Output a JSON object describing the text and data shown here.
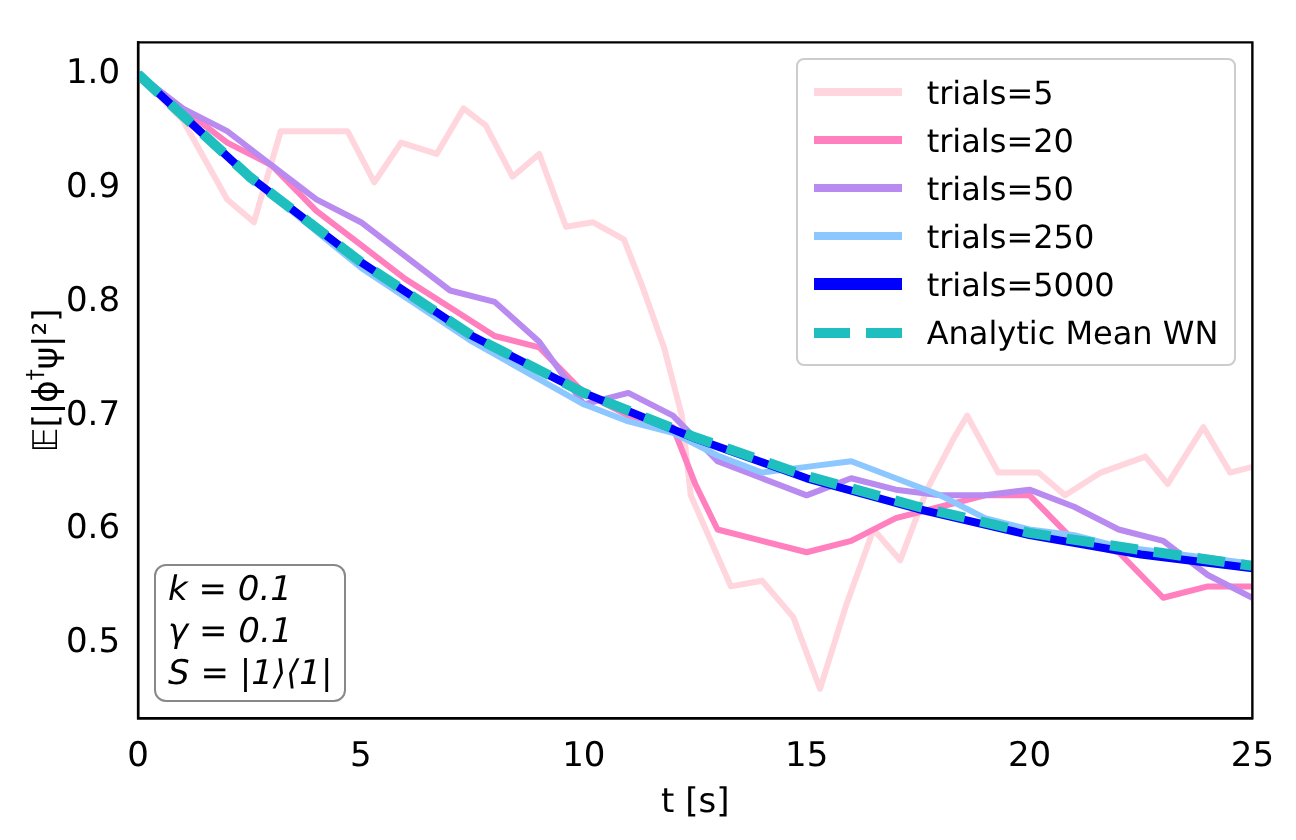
{
  "chart_data": {
    "type": "line",
    "ylabel": "𝔼[|ϕ$^{†}$ψ|²]",
    "xlabel": "t [s]",
    "xlim": [
      0,
      25
    ],
    "ylim": [
      0.434,
      1.028
    ],
    "xticks": [
      0,
      5,
      10,
      15,
      20,
      25
    ],
    "yticks": [
      0.5,
      0.6,
      0.7,
      0.8,
      0.9,
      {
        "value": 1,
        "label": "1.0"
      }
    ],
    "grid": false,
    "legend": "top right",
    "marker": "none",
    "annotations": [
      "k = 0.1",
      "γ = 0.1",
      "S = |1⟩⟨1|"
    ],
    "series": [
      {
        "name": "trials=5",
        "color": "#ffd6de",
        "line_style": "solid",
        "x": [
          0,
          1,
          2,
          2.6,
          3.2,
          3.8,
          4.7,
          5.3,
          5.9,
          6.7,
          7.3,
          7.8,
          8.4,
          9,
          9.6,
          10.2,
          10.9,
          11.3,
          11.8,
          12.2,
          12.4,
          13.3,
          14,
          14.7,
          15.3,
          15.9,
          16.5,
          17.1,
          17.7,
          18.3,
          18.6,
          19.3,
          20.2,
          20.8,
          21.6,
          22.6,
          23.1,
          23.9,
          24.5,
          25
        ],
        "values": [
          1,
          0.96,
          0.89,
          0.87,
          0.95,
          0.95,
          0.95,
          0.905,
          0.94,
          0.93,
          0.97,
          0.955,
          0.91,
          0.93,
          0.866,
          0.87,
          0.855,
          0.815,
          0.76,
          0.7,
          0.63,
          0.55,
          0.555,
          0.523,
          0.46,
          0.535,
          0.6,
          0.573,
          0.635,
          0.68,
          0.7,
          0.65,
          0.65,
          0.63,
          0.65,
          0.664,
          0.64,
          0.69,
          0.65,
          0.655
        ]
      },
      {
        "name": "trials=20",
        "color": "#ff7fbf",
        "line_style": "solid",
        "x": [
          0,
          1,
          2,
          3,
          4,
          5,
          6,
          7,
          8,
          9,
          10,
          11,
          12,
          12.5,
          13,
          14,
          15,
          16,
          17,
          18,
          19,
          20,
          21,
          22,
          23,
          24,
          25
        ],
        "values": [
          1,
          0.97,
          0.94,
          0.92,
          0.88,
          0.85,
          0.82,
          0.795,
          0.77,
          0.76,
          0.72,
          0.7,
          0.69,
          0.64,
          0.6,
          0.59,
          0.58,
          0.59,
          0.61,
          0.62,
          0.63,
          0.63,
          0.59,
          0.58,
          0.54,
          0.55,
          0.55
        ]
      },
      {
        "name": "trials=50",
        "color": "#b98af0",
        "line_style": "solid",
        "x": [
          0,
          1,
          2,
          3,
          4,
          5,
          6,
          7,
          8,
          9,
          10,
          11,
          12,
          13,
          14,
          15,
          16,
          17,
          18,
          19,
          20,
          21,
          22,
          23,
          24,
          25
        ],
        "values": [
          1,
          0.97,
          0.95,
          0.92,
          0.89,
          0.87,
          0.84,
          0.81,
          0.8,
          0.765,
          0.71,
          0.72,
          0.7,
          0.66,
          0.645,
          0.63,
          0.645,
          0.635,
          0.63,
          0.63,
          0.635,
          0.62,
          0.6,
          0.59,
          0.56,
          0.54
        ]
      },
      {
        "name": "trials=250",
        "color": "#8cc8ff",
        "line_style": "solid",
        "x": [
          0,
          2.5,
          5,
          7.5,
          10,
          11,
          12,
          13,
          14,
          15,
          16,
          17,
          18,
          19,
          20,
          21,
          22,
          23,
          24,
          25
        ],
        "values": [
          1,
          0.91,
          0.83,
          0.765,
          0.71,
          0.695,
          0.685,
          0.665,
          0.65,
          0.655,
          0.66,
          0.645,
          0.63,
          0.61,
          0.6,
          0.595,
          0.585,
          0.58,
          0.575,
          0.57
        ]
      },
      {
        "name": "trials=5000",
        "color": "#0000ff",
        "line_style": "solid",
        "x": [
          0,
          2.5,
          5,
          7.5,
          10,
          12.5,
          15,
          17.5,
          20,
          22.5,
          25
        ],
        "values": [
          1,
          0.91,
          0.835,
          0.77,
          0.72,
          0.68,
          0.645,
          0.618,
          0.595,
          0.578,
          0.566
        ]
      },
      {
        "name": "Analytic Mean WN",
        "color": "#1fbfbf",
        "line_style": "dashed",
        "x": [
          0,
          2.5,
          5,
          7.5,
          10,
          12.5,
          15,
          17.5,
          20,
          22.5,
          25
        ],
        "values": [
          1,
          0.91,
          0.835,
          0.77,
          0.72,
          0.681,
          0.647,
          0.62,
          0.597,
          0.582,
          0.568
        ]
      }
    ]
  }
}
